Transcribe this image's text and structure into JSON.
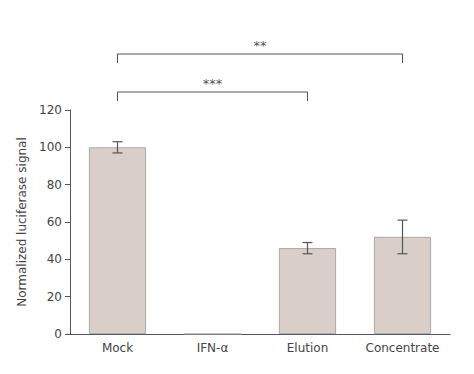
{
  "chart_data": {
    "type": "bar",
    "categories": [
      "Mock",
      "IFN-α",
      "Elution",
      "Concentrate"
    ],
    "values": [
      100.0,
      0.0,
      46.0,
      52.0
    ],
    "errors": [
      3.0,
      0.0,
      3.0,
      9.0
    ],
    "color": "#d9cfc8",
    "ylabel": "Normalized luciferase signal",
    "ylim": [
      0,
      120
    ],
    "yticks": [
      0,
      20,
      40,
      60,
      80,
      100,
      120
    ],
    "grid": false,
    "annotations": [
      {
        "from": "Mock",
        "to": "Elution",
        "label": "***"
      },
      {
        "from": "Mock",
        "to": "Concentrate",
        "label": "**"
      }
    ]
  }
}
